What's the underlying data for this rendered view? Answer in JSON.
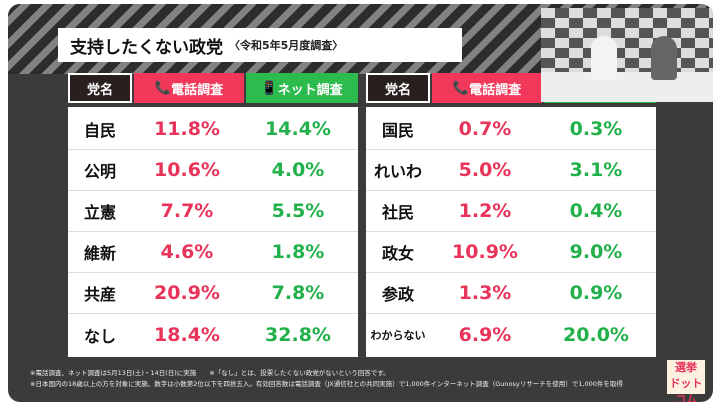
{
  "title": "支持したくない政党",
  "subtitle": "〈令和5年5月度調査〉",
  "headers": {
    "party": "党名",
    "phone": "電話調査",
    "net": "ネット調査"
  },
  "icons": {
    "phone": "phone-icon",
    "net": "smartphone-icon"
  },
  "colors": {
    "phone": "#f2385a",
    "net": "#2dbb4e"
  },
  "left": [
    {
      "party": "自民",
      "phone": "11.8%",
      "net": "14.4%"
    },
    {
      "party": "公明",
      "phone": "10.6%",
      "net": "4.0%"
    },
    {
      "party": "立憲",
      "phone": "7.7%",
      "net": "5.5%"
    },
    {
      "party": "維新",
      "phone": "4.6%",
      "net": "1.8%"
    },
    {
      "party": "共産",
      "phone": "20.9%",
      "net": "7.8%"
    },
    {
      "party": "なし",
      "phone": "18.4%",
      "net": "32.8%"
    }
  ],
  "right": [
    {
      "party": "国民",
      "phone": "0.7%",
      "net": "0.3%"
    },
    {
      "party": "れいわ",
      "phone": "5.0%",
      "net": "3.1%"
    },
    {
      "party": "社民",
      "phone": "1.2%",
      "net": "0.4%"
    },
    {
      "party": "政女",
      "phone": "10.9%",
      "net": "9.0%"
    },
    {
      "party": "参政",
      "phone": "1.3%",
      "net": "0.9%"
    },
    {
      "party": "わからない",
      "phone": "6.9%",
      "net": "20.0%"
    }
  ],
  "notes": [
    "※電話調査、ネット調査は5月13日(土)・14日(日)に実施　　※「なし」とは、投票したくない政党がないという回答です。",
    "※日本国内の18歳以上の方を対象に実施、数字は小数第2位以下を四捨五入。有効回答数は電話調査（JX通信社との共同実施）で1,000件インターネット調査（Gunosyリサーチを使用）で1,000件を取得"
  ],
  "logo": "選挙ドットコム"
}
